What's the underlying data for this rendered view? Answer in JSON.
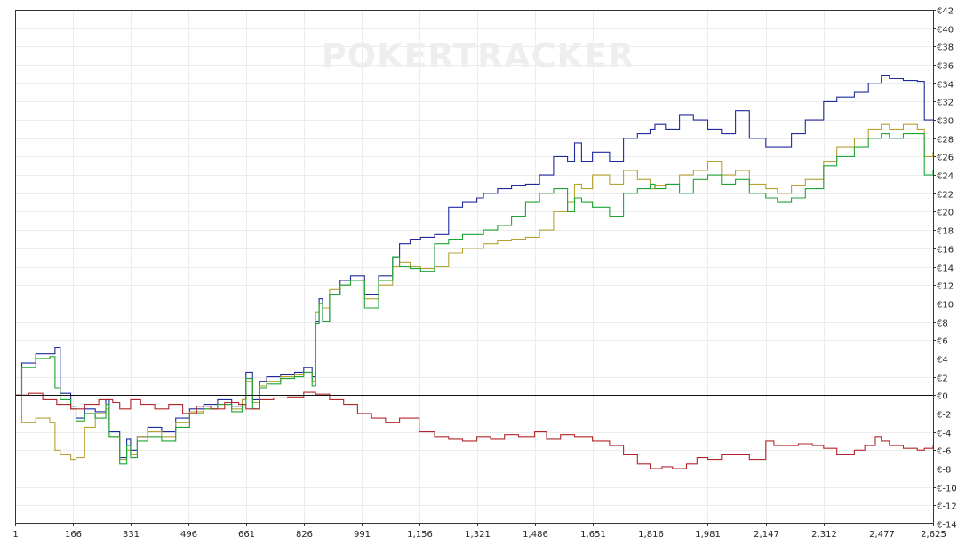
{
  "watermark": "POKERTRACKER",
  "chart_data": {
    "type": "line",
    "title": "",
    "xlabel": "",
    "ylabel": "",
    "xlim": [
      1,
      2625
    ],
    "ylim": [
      -14,
      42
    ],
    "x_ticks": [
      1,
      166,
      331,
      496,
      661,
      826,
      991,
      1156,
      1321,
      1486,
      1651,
      1816,
      1981,
      2147,
      2312,
      2477,
      2625
    ],
    "x_tick_labels": [
      "1",
      "166",
      "331",
      "496",
      "661",
      "826",
      "991",
      "1,156",
      "1,321",
      "1,486",
      "1,651",
      "1,816",
      "1,981",
      "2,147",
      "2,312",
      "2,477",
      "2,625"
    ],
    "y_ticks": [
      42,
      40,
      38,
      36,
      34,
      32,
      30,
      28,
      26,
      24,
      22,
      20,
      18,
      16,
      14,
      12,
      10,
      8,
      6,
      4,
      2,
      0,
      -2,
      -4,
      -6,
      -8,
      -10,
      -12,
      -14
    ],
    "y_tick_labels": [
      "€42",
      "€40",
      "€38",
      "€36",
      "€34",
      "€32",
      "€30",
      "€28",
      "€26",
      "€24",
      "€22",
      "€20",
      "€18",
      "€16",
      "€14",
      "€12",
      "€10",
      "€8",
      "€6",
      "€4",
      "€2",
      "€0",
      "€-2",
      "€-4",
      "€-6",
      "€-8",
      "€-10",
      "€-12",
      "€-14"
    ],
    "grid": true,
    "zero_line": true,
    "series": [
      {
        "color": "#1f2a9e",
        "x": [
          1,
          20,
          60,
          100,
          115,
          130,
          160,
          175,
          200,
          230,
          260,
          270,
          300,
          320,
          331,
          350,
          380,
          420,
          460,
          500,
          540,
          580,
          620,
          650,
          661,
          680,
          700,
          720,
          760,
          800,
          826,
          850,
          860,
          870,
          880,
          900,
          930,
          960,
          1000,
          1040,
          1080,
          1100,
          1130,
          1160,
          1200,
          1240,
          1280,
          1321,
          1340,
          1380,
          1420,
          1460,
          1500,
          1540,
          1580,
          1600,
          1620,
          1651,
          1700,
          1740,
          1780,
          1816,
          1830,
          1860,
          1900,
          1940,
          1981,
          2020,
          2060,
          2100,
          2147,
          2180,
          2220,
          2260,
          2312,
          2350,
          2400,
          2440,
          2477,
          2500,
          2540,
          2580,
          2600,
          2625
        ],
        "y": [
          0,
          3.5,
          4.5,
          4.5,
          5.2,
          0.2,
          -1.2,
          -2.5,
          -1.5,
          -1.8,
          -0.5,
          -4.0,
          -6.8,
          -4.8,
          -6.0,
          -4.5,
          -3.5,
          -4.0,
          -2.5,
          -1.5,
          -1.0,
          -0.5,
          -1.2,
          -0.5,
          2.5,
          -0.5,
          1.5,
          2.0,
          2.2,
          2.5,
          3.0,
          2.0,
          8.0,
          10.5,
          8.0,
          11.0,
          12.5,
          13.0,
          11.0,
          13.0,
          15.0,
          16.5,
          17.0,
          17.2,
          17.5,
          20.5,
          21.0,
          21.5,
          22.0,
          22.5,
          22.8,
          23.0,
          24.0,
          26.0,
          25.5,
          27.5,
          25.5,
          26.5,
          25.5,
          28.0,
          28.5,
          29.0,
          29.5,
          29.0,
          30.5,
          30.0,
          29.0,
          28.5,
          31.0,
          28.0,
          27.0,
          27.0,
          28.5,
          30.0,
          32.0,
          32.5,
          33.0,
          34.0,
          34.8,
          34.5,
          34.3,
          34.2,
          30.0,
          30.0
        ]
      },
      {
        "color": "#b5a232",
        "x": [
          1,
          20,
          60,
          100,
          115,
          130,
          160,
          175,
          200,
          230,
          260,
          270,
          300,
          320,
          331,
          350,
          380,
          420,
          460,
          500,
          540,
          580,
          620,
          650,
          661,
          680,
          700,
          720,
          760,
          800,
          826,
          850,
          860,
          870,
          880,
          900,
          930,
          960,
          1000,
          1040,
          1080,
          1100,
          1130,
          1160,
          1200,
          1240,
          1280,
          1321,
          1340,
          1380,
          1420,
          1460,
          1500,
          1540,
          1580,
          1600,
          1620,
          1651,
          1700,
          1740,
          1780,
          1816,
          1830,
          1860,
          1900,
          1940,
          1981,
          2020,
          2060,
          2100,
          2147,
          2180,
          2220,
          2260,
          2312,
          2350,
          2400,
          2440,
          2477,
          2500,
          2540,
          2580,
          2600,
          2625
        ],
        "y": [
          0,
          -3.0,
          -2.5,
          -3.0,
          -6.0,
          -6.5,
          -7.0,
          -6.8,
          -3.5,
          -2.0,
          -1.5,
          -4.5,
          -7.0,
          -6.0,
          -6.5,
          -4.5,
          -4.0,
          -4.5,
          -3.0,
          -1.8,
          -1.5,
          -1.0,
          -1.5,
          -0.5,
          1.5,
          -0.8,
          1.0,
          1.5,
          2.0,
          2.2,
          2.5,
          1.5,
          9.0,
          10.0,
          9.5,
          11.5,
          12.0,
          12.5,
          10.5,
          12.0,
          14.0,
          14.5,
          14.0,
          13.8,
          14.0,
          15.5,
          16.0,
          16.0,
          16.5,
          16.8,
          17.0,
          17.2,
          18.0,
          20.0,
          21.0,
          23.0,
          22.5,
          24.0,
          23.0,
          24.5,
          23.5,
          22.5,
          22.8,
          23.0,
          24.0,
          24.5,
          25.5,
          24.0,
          24.5,
          23.0,
          22.5,
          22.0,
          22.8,
          23.5,
          25.5,
          27.0,
          28.0,
          29.0,
          29.5,
          29.0,
          29.5,
          29.0,
          26.0,
          26.5
        ]
      },
      {
        "color": "#1da636",
        "x": [
          1,
          20,
          60,
          100,
          115,
          130,
          160,
          175,
          200,
          230,
          260,
          270,
          300,
          320,
          331,
          350,
          380,
          420,
          460,
          500,
          540,
          580,
          620,
          650,
          661,
          680,
          700,
          720,
          760,
          800,
          826,
          850,
          860,
          870,
          880,
          900,
          930,
          960,
          1000,
          1040,
          1080,
          1100,
          1130,
          1160,
          1200,
          1240,
          1280,
          1321,
          1340,
          1380,
          1420,
          1460,
          1500,
          1540,
          1580,
          1600,
          1620,
          1651,
          1700,
          1740,
          1780,
          1816,
          1830,
          1860,
          1900,
          1940,
          1981,
          2020,
          2060,
          2100,
          2147,
          2180,
          2220,
          2260,
          2312,
          2350,
          2400,
          2440,
          2477,
          2500,
          2540,
          2580,
          2600,
          2625
        ],
        "y": [
          0,
          3.0,
          4.0,
          4.2,
          0.8,
          -0.5,
          -1.5,
          -2.8,
          -2.0,
          -2.5,
          -1.0,
          -4.5,
          -7.5,
          -5.5,
          -6.8,
          -5.0,
          -4.5,
          -5.0,
          -3.5,
          -2.0,
          -1.5,
          -1.0,
          -1.8,
          -1.0,
          1.8,
          -1.5,
          0.8,
          1.2,
          1.8,
          2.0,
          2.5,
          1.0,
          7.8,
          10.0,
          8.0,
          11.0,
          12.0,
          12.5,
          9.5,
          12.5,
          15.0,
          14.0,
          13.8,
          13.5,
          16.5,
          17.0,
          17.5,
          17.5,
          18.0,
          18.5,
          19.5,
          21.0,
          22.0,
          22.5,
          20.0,
          21.5,
          21.0,
          20.5,
          19.5,
          22.0,
          22.5,
          23.0,
          22.5,
          23.0,
          22.0,
          23.5,
          24.0,
          23.0,
          23.5,
          22.0,
          21.5,
          21.0,
          21.5,
          22.5,
          25.0,
          26.0,
          27.0,
          28.0,
          28.5,
          28.0,
          28.5,
          28.5,
          24.0,
          24.5
        ]
      },
      {
        "color": "#b3262a",
        "x": [
          1,
          40,
          80,
          120,
          160,
          200,
          240,
          280,
          300,
          331,
          360,
          400,
          440,
          480,
          520,
          560,
          600,
          640,
          661,
          700,
          740,
          780,
          826,
          860,
          900,
          940,
          980,
          1020,
          1060,
          1100,
          1156,
          1200,
          1240,
          1280,
          1321,
          1360,
          1400,
          1440,
          1486,
          1520,
          1560,
          1600,
          1651,
          1700,
          1740,
          1780,
          1816,
          1850,
          1880,
          1920,
          1950,
          1981,
          2020,
          2060,
          2100,
          2147,
          2170,
          2200,
          2240,
          2280,
          2312,
          2350,
          2400,
          2430,
          2460,
          2477,
          2500,
          2540,
          2580,
          2600,
          2625
        ],
        "y": [
          0,
          0.2,
          -0.5,
          -1.0,
          -1.5,
          -1.0,
          -0.5,
          -0.8,
          -1.5,
          -0.5,
          -1.0,
          -1.5,
          -1.0,
          -2.0,
          -1.2,
          -1.5,
          -0.8,
          -1.0,
          -1.5,
          -0.5,
          -0.3,
          -0.2,
          0.3,
          0.1,
          -0.5,
          -1.0,
          -2.0,
          -2.5,
          -3.0,
          -2.5,
          -4.0,
          -4.5,
          -4.8,
          -5.0,
          -4.5,
          -4.8,
          -4.3,
          -4.5,
          -4.0,
          -4.8,
          -4.3,
          -4.5,
          -5.0,
          -5.5,
          -6.5,
          -7.5,
          -8.0,
          -7.8,
          -8.0,
          -7.5,
          -6.8,
          -7.0,
          -6.5,
          -6.5,
          -7.0,
          -5.0,
          -5.5,
          -5.5,
          -5.3,
          -5.5,
          -5.8,
          -6.5,
          -6.0,
          -5.5,
          -4.5,
          -5.0,
          -5.5,
          -5.8,
          -6.0,
          -5.8,
          -5.5
        ]
      }
    ]
  }
}
